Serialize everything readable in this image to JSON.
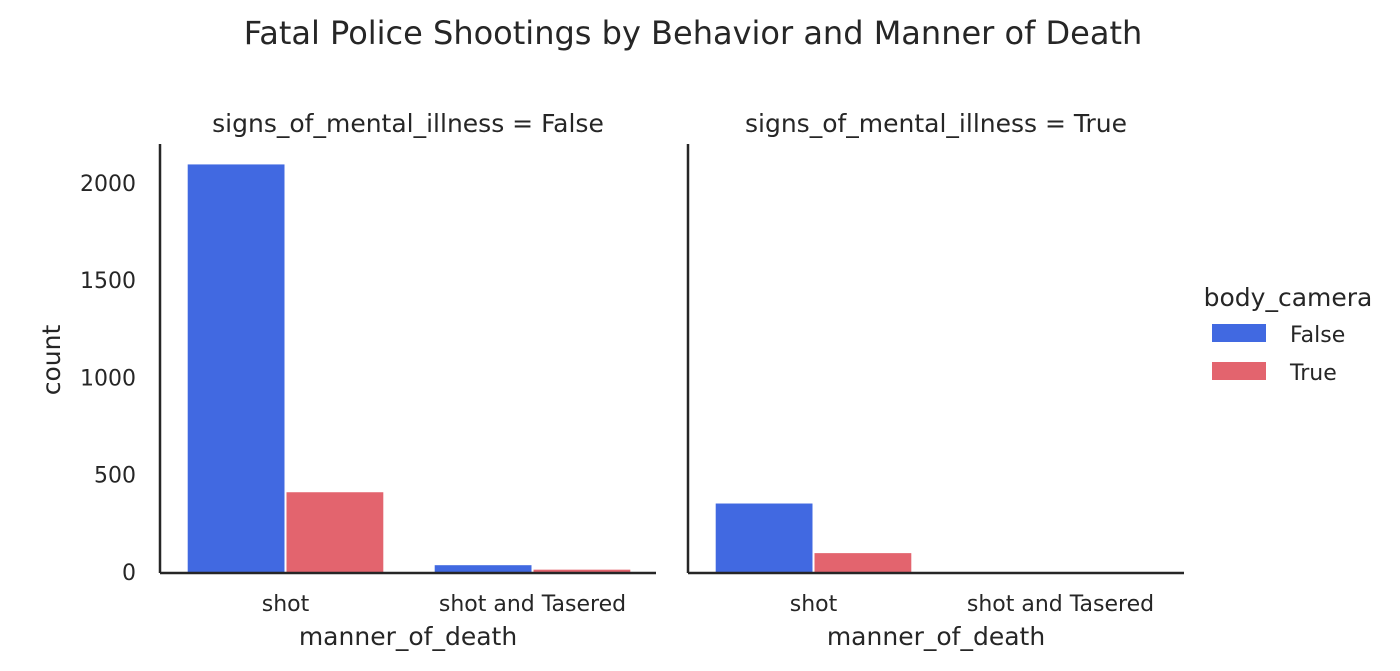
{
  "chart_data": {
    "type": "bar",
    "title": "Fatal Police Shootings by Behavior and Manner of Death",
    "xlabel": "manner_of_death",
    "ylabel": "count",
    "ylim": [
      0,
      2200
    ],
    "yticks": [
      0,
      500,
      1000,
      1500,
      2000
    ],
    "categories": [
      "shot",
      "shot and Tasered"
    ],
    "legend": {
      "title": "body_camera",
      "placement": "right",
      "entries": [
        {
          "label": "False",
          "color": "#4169e1"
        },
        {
          "label": "True",
          "color": "#e3646e"
        }
      ]
    },
    "facets": [
      {
        "title": "signs_of_mental_illness = False",
        "series": [
          {
            "name": "False",
            "values": [
              2095,
              35
            ]
          },
          {
            "name": "True",
            "values": [
              410,
              12
            ]
          }
        ]
      },
      {
        "title": "signs_of_mental_illness = True",
        "series": [
          {
            "name": "False",
            "values": [
              352,
              0
            ]
          },
          {
            "name": "True",
            "values": [
              97,
              0
            ]
          }
        ]
      }
    ],
    "grid": false
  }
}
